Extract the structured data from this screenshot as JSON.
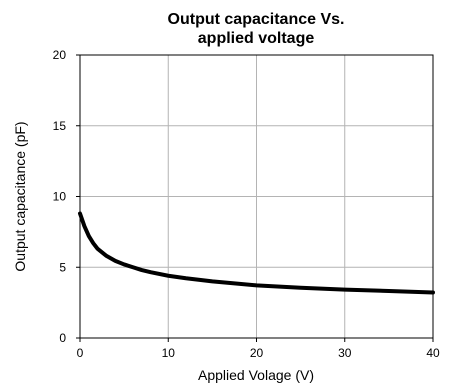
{
  "chart_data": {
    "type": "line",
    "title_lines": [
      "Output capacitance Vs.",
      "applied voltage"
    ],
    "xlabel": "Applied Volage (V)",
    "ylabel": "Output capacitance (pF)",
    "xlim": [
      0,
      40
    ],
    "ylim": [
      0,
      20
    ],
    "x_ticks": [
      "0",
      "10",
      "20",
      "30",
      "40"
    ],
    "y_ticks": [
      "0",
      "5",
      "10",
      "15",
      "20"
    ],
    "grid": true,
    "legend": "none",
    "series": [
      {
        "color": "#000000",
        "x": [
          0,
          0.5,
          1,
          1.5,
          2,
          3,
          4,
          5,
          6,
          7,
          8,
          10,
          12,
          15,
          20,
          25,
          30,
          35,
          40
        ],
        "y": [
          8.8,
          7.9,
          7.2,
          6.7,
          6.3,
          5.8,
          5.45,
          5.2,
          5.0,
          4.8,
          4.65,
          4.4,
          4.22,
          4.0,
          3.72,
          3.55,
          3.42,
          3.32,
          3.22
        ]
      }
    ]
  }
}
